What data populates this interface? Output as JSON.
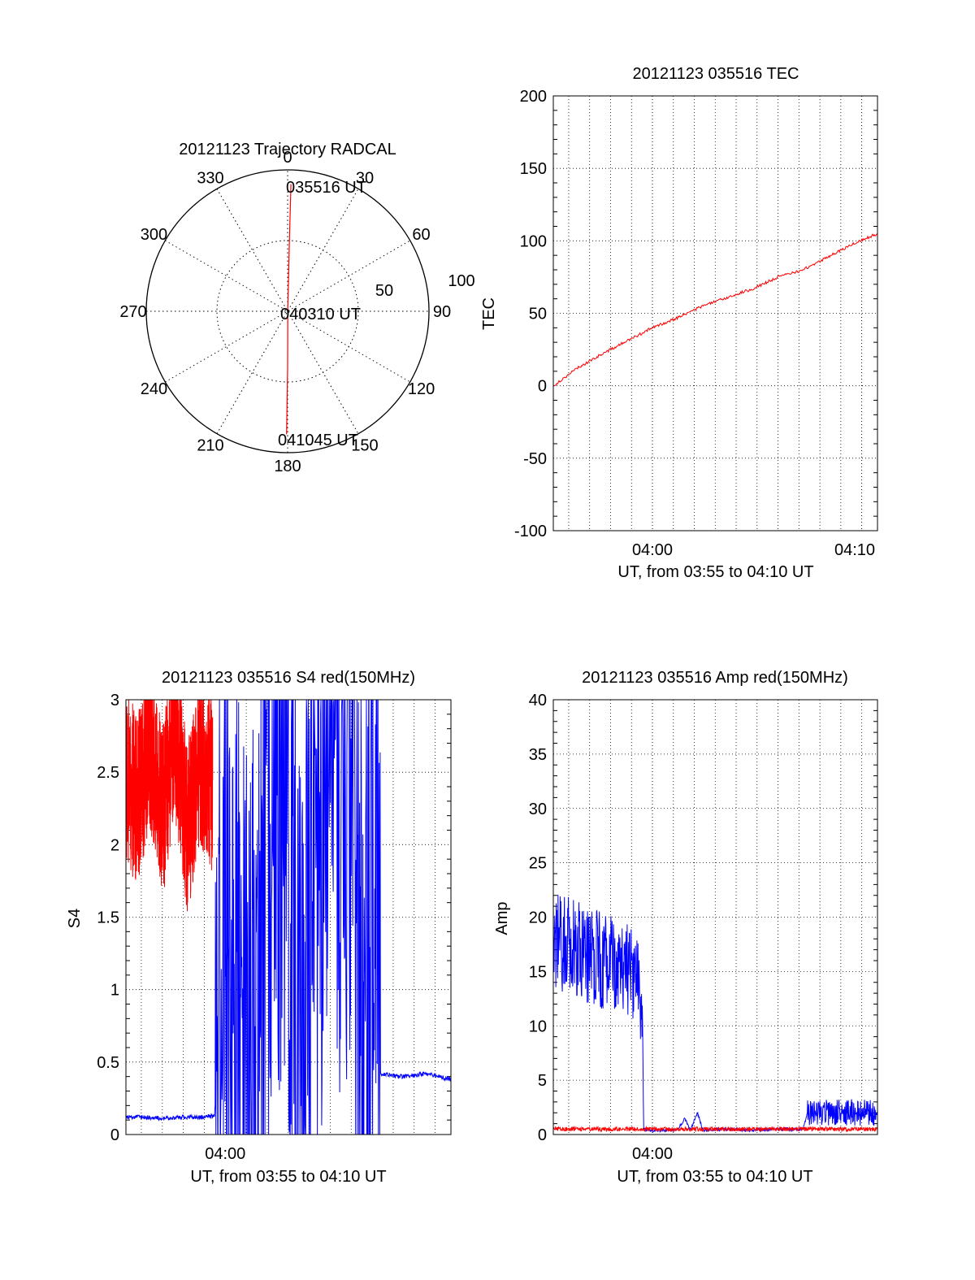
{
  "chart_data": [
    {
      "id": "trajectory",
      "type": "polar",
      "title": "20121123 Trajectory RADCAL",
      "angle_labels": [
        "0",
        "30",
        "60",
        "90",
        "120",
        "150",
        "180",
        "210",
        "240",
        "270",
        "300",
        "330"
      ],
      "radial_label": "50",
      "outer_label": "100",
      "r_max": 100,
      "start_label": "035516 UT",
      "mid_label": "040310 UT",
      "end_label": "041045 UT",
      "track": [
        {
          "az": 1.5,
          "el_dist": 90
        },
        {
          "az": 1.5,
          "el_dist": 45
        },
        {
          "az": 3,
          "el_dist": 2
        },
        {
          "az": 180,
          "el_dist": 40
        },
        {
          "az": 180.5,
          "el_dist": 87
        }
      ],
      "track_color": "#ff0000",
      "grid": "dotted"
    },
    {
      "id": "tec",
      "type": "line",
      "title": "20121123 035516 TEC",
      "xlabel": "UT, from 03:55 to 04:10 UT",
      "ylabel": "TEC",
      "xlim": [
        3.9211,
        4.1792
      ],
      "ylim": [
        -100,
        200
      ],
      "yticks": [
        "200",
        "150",
        "100",
        "50",
        "0",
        "-50",
        "-100"
      ],
      "xtick_labels": [
        "04:00",
        "04:10"
      ],
      "grid": true,
      "series": [
        {
          "color": "#ff0000",
          "x": [
            3.9211,
            3.94,
            3.96,
            3.98,
            4.0,
            4.02,
            4.04,
            4.06,
            4.08,
            4.1,
            4.12,
            4.14,
            4.16,
            4.1792
          ],
          "y": [
            0,
            12,
            22,
            31,
            40,
            47,
            55,
            61,
            67,
            75,
            80,
            89,
            98,
            105
          ]
        }
      ]
    },
    {
      "id": "s4",
      "type": "line",
      "title": "20121123 035516 S4 red(150MHz)",
      "xlabel": "UT, from 03:55 to 04:10 UT",
      "ylabel": "S4",
      "xlim": [
        3.9211,
        4.1792
      ],
      "ylim": [
        0,
        3
      ],
      "yticks": [
        "3",
        "2.5",
        "2",
        "1.5",
        "1",
        "0.5",
        "0"
      ],
      "xtick_labels": [
        "04:00"
      ],
      "grid": true,
      "series": [
        {
          "color": "#0000ff",
          "x": [
            3.9211,
            3.935,
            3.95,
            3.965,
            3.98,
            3.9915,
            4.0,
            4.02,
            4.04,
            4.06,
            4.08,
            4.1,
            4.11,
            4.12,
            4.1233,
            4.14,
            4.16,
            4.1792
          ],
          "y": [
            0.12,
            0.12,
            0.11,
            0.12,
            0.12,
            0.13,
            1.5,
            0.3,
            2.8,
            0.4,
            3,
            2.5,
            0.5,
            2.8,
            0.42,
            0.4,
            0.42,
            0.38
          ]
        },
        {
          "color": "#ff0000",
          "x": [
            3.9211,
            3.93,
            3.94,
            3.95,
            3.96,
            3.97,
            3.98,
            3.99
          ],
          "y": [
            2.5,
            2.3,
            2.7,
            2.2,
            2.8,
            2.1,
            2.6,
            2.4
          ]
        }
      ]
    },
    {
      "id": "amp",
      "type": "line",
      "title": "20121123 035516 Amp red(150MHz)",
      "xlabel": "UT, from 03:55 to 04:10 UT",
      "ylabel": "Amp",
      "xlim": [
        3.9211,
        4.1792
      ],
      "ylim": [
        0,
        40
      ],
      "yticks": [
        "40",
        "35",
        "30",
        "25",
        "20",
        "15",
        "10",
        "5",
        "0"
      ],
      "xtick_labels": [
        "04:00"
      ],
      "grid": true,
      "series": [
        {
          "color": "#0000ff",
          "x": [
            3.9211,
            3.94,
            3.96,
            3.98,
            3.992,
            3.993,
            4.0,
            4.02,
            4.026,
            4.03,
            4.036,
            4.04,
            4.06,
            4.08,
            4.1,
            4.12,
            4.1233,
            4.14,
            4.16,
            4.1792
          ],
          "y": [
            18,
            17,
            16,
            15,
            13,
            0.5,
            0.4,
            0.4,
            1.5,
            0.4,
            2,
            0.4,
            0.5,
            0.4,
            0.5,
            0.5,
            2,
            2,
            2,
            2
          ]
        },
        {
          "color": "#ff0000",
          "x": [
            3.9211,
            4.0,
            4.1,
            4.1792
          ],
          "y": [
            0.3,
            0.3,
            0.3,
            0.3
          ]
        }
      ]
    }
  ]
}
